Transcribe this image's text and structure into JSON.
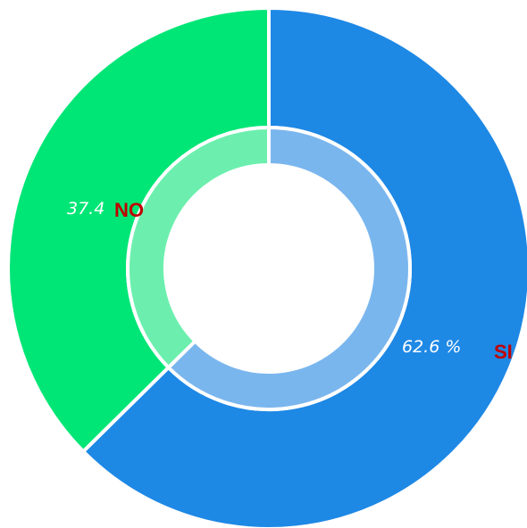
{
  "chart_data": {
    "type": "pie",
    "subtype": "donut",
    "slices": [
      {
        "category": "SI",
        "value": 62.6,
        "label": "62.6 %",
        "color": "#1e88e5",
        "inner_color": "#7ab6ee"
      },
      {
        "category": "NO",
        "value": 37.4,
        "label": "37.4",
        "color": "#00e676",
        "inner_color": "#6cefae"
      }
    ],
    "title": "",
    "legend": "none"
  }
}
